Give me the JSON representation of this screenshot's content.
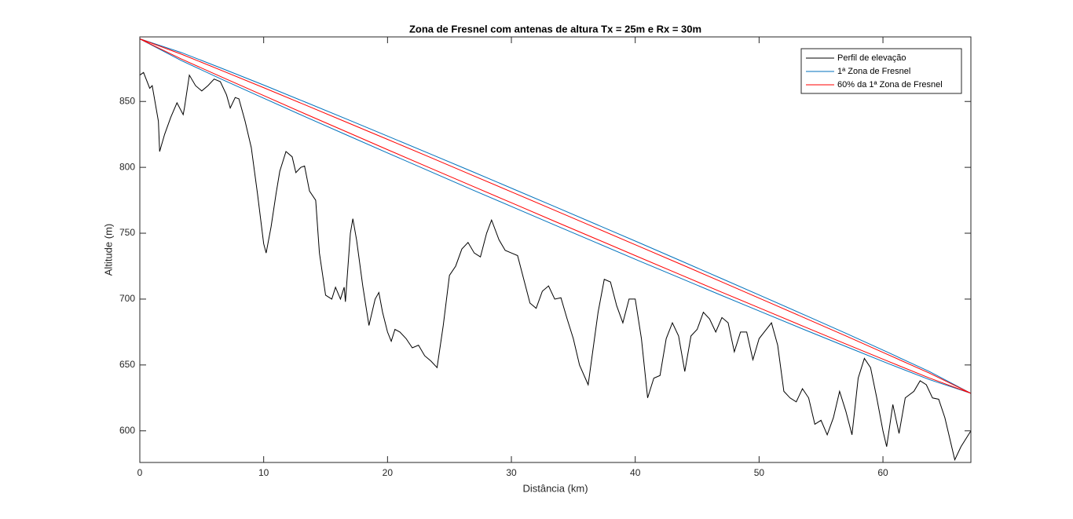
{
  "chart_data": {
    "type": "line",
    "title": "Zona de Fresnel com antenas de altura Tx = 25m e Rx = 30m",
    "x_label": "Distância (km)",
    "y_label": "Altitude (m)",
    "xlim": [
      0,
      67.1
    ],
    "ylim": [
      576,
      899
    ],
    "xticks": [
      0,
      10,
      20,
      30,
      40,
      50,
      60
    ],
    "yticks": [
      600,
      650,
      700,
      750,
      800,
      850
    ],
    "legend": "upper right",
    "grid": false,
    "series": [
      {
        "name": "Perfil de elevação",
        "color": "#000000",
        "x": [
          0,
          0.3,
          0.8,
          1,
          1.5,
          1.6,
          2,
          2.5,
          3,
          3.5,
          3.6,
          4,
          4.5,
          5,
          5.5,
          6,
          6.5,
          7,
          7.3,
          7.7,
          8,
          8.5,
          9,
          9.5,
          10,
          10.2,
          10.6,
          11,
          11.3,
          11.8,
          12.3,
          12.6,
          13,
          13.3,
          13.7,
          14.2,
          14.5,
          15,
          15.5,
          15.8,
          16.2,
          16.5,
          16.6,
          17,
          17.2,
          17.5,
          18,
          18.5,
          19,
          19.3,
          19.6,
          20,
          20.3,
          20.6,
          21,
          21.5,
          22,
          22.5,
          23,
          23.5,
          24,
          24.5,
          25,
          25.5,
          26,
          26.5,
          27,
          27.5,
          28,
          28.4,
          29,
          29.5,
          30,
          30.5,
          31,
          31.5,
          32,
          32.5,
          33,
          33.5,
          34,
          34.5,
          35,
          35.5,
          36.2,
          37,
          37.5,
          38,
          38.5,
          39,
          39.5,
          40,
          40.5,
          41,
          41.5,
          42,
          42.5,
          43,
          43.5,
          44,
          44.5,
          45,
          45.5,
          46,
          46.5,
          47,
          47.5,
          48,
          48.5,
          49,
          49.5,
          50,
          50.5,
          51,
          51.5,
          52,
          52.5,
          53,
          53.5,
          54,
          54.5,
          55,
          55.5,
          56,
          56.5,
          57,
          57.5,
          58,
          58.5,
          59,
          59.5,
          60,
          60.3,
          60.8,
          61.3,
          61.8,
          62.5,
          63,
          63.5,
          64,
          64.5,
          65,
          65.5,
          65.8,
          66.3,
          67.1
        ],
        "values": [
          870,
          872,
          860,
          862,
          835,
          812,
          825,
          838,
          849,
          840,
          845,
          870,
          862,
          858,
          862,
          867,
          865,
          855,
          845,
          853,
          852,
          835,
          815,
          780,
          742,
          735,
          755,
          780,
          797,
          812,
          808,
          796,
          800,
          801,
          782,
          775,
          735,
          703,
          700,
          709,
          700,
          709,
          698,
          750,
          761,
          745,
          710,
          680,
          700,
          705,
          690,
          675,
          668,
          677,
          675,
          670,
          663,
          665,
          657,
          653,
          648,
          680,
          718,
          725,
          738,
          743,
          735,
          732,
          750,
          760,
          745,
          737,
          735,
          733,
          715,
          697,
          693,
          706,
          710,
          700,
          701,
          685,
          670,
          650,
          635,
          690,
          715,
          713,
          695,
          682,
          700,
          700,
          670,
          625,
          640,
          642,
          670,
          682,
          672,
          645,
          672,
          677,
          690,
          685,
          675,
          686,
          682,
          660,
          675,
          675,
          654,
          670,
          676,
          682,
          665,
          630,
          625,
          622,
          632,
          625,
          605,
          608,
          597,
          610,
          630,
          615,
          597,
          640,
          655,
          648,
          625,
          600,
          588,
          620,
          598,
          625,
          630,
          638,
          635,
          625,
          624,
          610,
          590,
          578,
          588,
          600
        ]
      },
      {
        "name": "1ª Zona de Fresnel",
        "color": "#0072bd",
        "x": [
          0,
          3.36,
          6.71,
          10.07,
          13.42,
          16.78,
          20.13,
          23.49,
          26.84,
          30.2,
          33.55,
          36.91,
          40.26,
          43.62,
          46.97,
          50.33,
          53.68,
          57.04,
          60.39,
          63.75,
          67.1
        ],
        "values": [
          897.5,
          887.1,
          874.8,
          862.2,
          849.3,
          836.3,
          823.2,
          810.0,
          796.8,
          783.4,
          770.0,
          756.5,
          743.0,
          729.3,
          715.6,
          701.8,
          687.9,
          673.9,
          659.6,
          645.0,
          628.5
        ],
        "lower": [
          897.5,
          881.0,
          866.4,
          852.2,
          838.1,
          824.2,
          810.4,
          796.7,
          783.0,
          769.5,
          756.0,
          742.6,
          729.2,
          716.0,
          702.8,
          689.7,
          676.7,
          663.9,
          651.2,
          638.9,
          628.5
        ]
      },
      {
        "name": "60% da 1ª Zona de Fresnel",
        "color": "#ff0000",
        "x": [
          0,
          3.36,
          6.71,
          10.07,
          13.42,
          16.78,
          20.13,
          23.49,
          26.84,
          30.2,
          33.55,
          36.91,
          40.26,
          43.62,
          46.97,
          50.33,
          53.68,
          57.04,
          60.39,
          63.75,
          67.1
        ],
        "values": [
          897.5,
          885.9,
          873.1,
          860.2,
          847.1,
          833.9,
          820.7,
          807.4,
          794.0,
          780.6,
          767.2,
          753.7,
          740.2,
          726.7,
          713.1,
          699.4,
          685.7,
          671.9,
          657.9,
          643.8,
          628.5
        ],
        "lower": [
          897.5,
          882.2,
          868.1,
          854.2,
          840.3,
          826.6,
          812.9,
          799.3,
          785.8,
          772.3,
          758.8,
          745.4,
          732.0,
          718.6,
          705.3,
          692.1,
          678.9,
          665.8,
          652.9,
          640.1,
          628.5
        ]
      }
    ]
  }
}
